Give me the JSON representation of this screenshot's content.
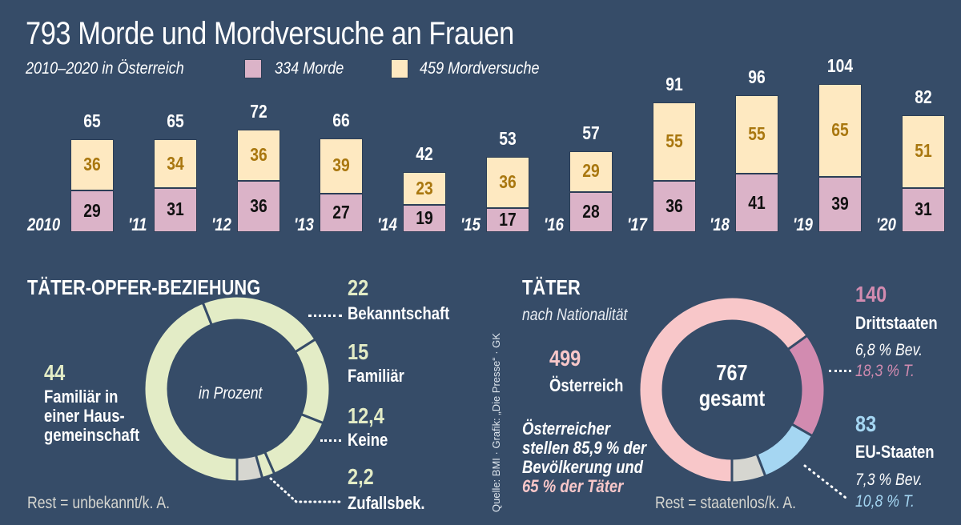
{
  "title": "793 Morde und Mordversuche an Frauen",
  "subtitle": "2010–2020 in Österreich",
  "colors": {
    "background": "#364c68",
    "morde": "#dbb3c8",
    "mordversuche": "#fee9c1",
    "mordversuche_text": "#a9770f",
    "relationship": "#e3ecc6",
    "rest": "#d6d6d0",
    "oesterreich": "#f8c7c9",
    "drittstaaten": "#d28bb0",
    "eu": "#a5d6f2"
  },
  "legend": [
    {
      "label": "334 Morde",
      "color": "#dbb3c8"
    },
    {
      "label": "459 Mordversuche",
      "color": "#fee9c1"
    }
  ],
  "chart_data": [
    {
      "type": "bar",
      "stacked": true,
      "title": "793 Morde und Mordversuche an Frauen",
      "subtitle": "2010–2020 in Österreich",
      "categories": [
        "2010",
        "'11",
        "'12",
        "'13",
        "'14",
        "'15",
        "'16",
        "'17",
        "'18",
        "'19",
        "'20"
      ],
      "series": [
        {
          "name": "334 Morde",
          "values": [
            29,
            31,
            36,
            27,
            19,
            17,
            28,
            36,
            41,
            39,
            31
          ]
        },
        {
          "name": "459 Mordversuche",
          "values": [
            36,
            34,
            36,
            39,
            23,
            36,
            29,
            55,
            55,
            65,
            51
          ]
        }
      ],
      "totals": [
        65,
        65,
        72,
        66,
        42,
        53,
        57,
        91,
        96,
        104,
        82
      ],
      "ylim": [
        0,
        110
      ],
      "grid": false,
      "legend_position": "top-left"
    },
    {
      "type": "pie",
      "donut": true,
      "title": "TÄTER-OPFER-BEZIEHUNG",
      "center_label": "in Prozent",
      "slices": [
        {
          "value": "44",
          "num": 44,
          "label": "Familiär in einer Haus-gemeinschaft"
        },
        {
          "value": "22",
          "num": 22,
          "label": "Bekanntschaft"
        },
        {
          "value": "15",
          "num": 15,
          "label": "Familiär"
        },
        {
          "value": "12,4",
          "num": 12.4,
          "label": "Keine"
        },
        {
          "value": "2,2",
          "num": 2.2,
          "label": "Zufallsbek."
        },
        {
          "value": "",
          "num": 4.4,
          "label": "Rest = unbekannt/k. A."
        }
      ],
      "note": "Rest = unbekannt/k. A."
    },
    {
      "type": "pie",
      "donut": true,
      "title": "TÄTER",
      "subtitle": "nach Nationalität",
      "center_label": [
        "767",
        "gesamt"
      ],
      "total": 767,
      "slices": [
        {
          "value": "499",
          "num": 499,
          "label": "Österreich"
        },
        {
          "value": "140",
          "num": 140,
          "label": "Drittstaaten",
          "bev": "6,8 % Bev.",
          "taeter": "18,3 % T."
        },
        {
          "value": "83",
          "num": 83,
          "label": "EU-Staaten",
          "bev": "7,3 % Bev.",
          "taeter": "10,8 % T."
        },
        {
          "value": "",
          "num": 45,
          "label": "Rest = staatenlos/k. A."
        }
      ],
      "note_lines": [
        "Österreicher",
        "stellen 85,9 % der",
        "Bevölkerung und",
        "65 % der Täter"
      ],
      "rest": "Rest = staatenlos/k. A."
    }
  ],
  "source": "Quelle: BMI · Grafik: „Die Presse“ · GK"
}
